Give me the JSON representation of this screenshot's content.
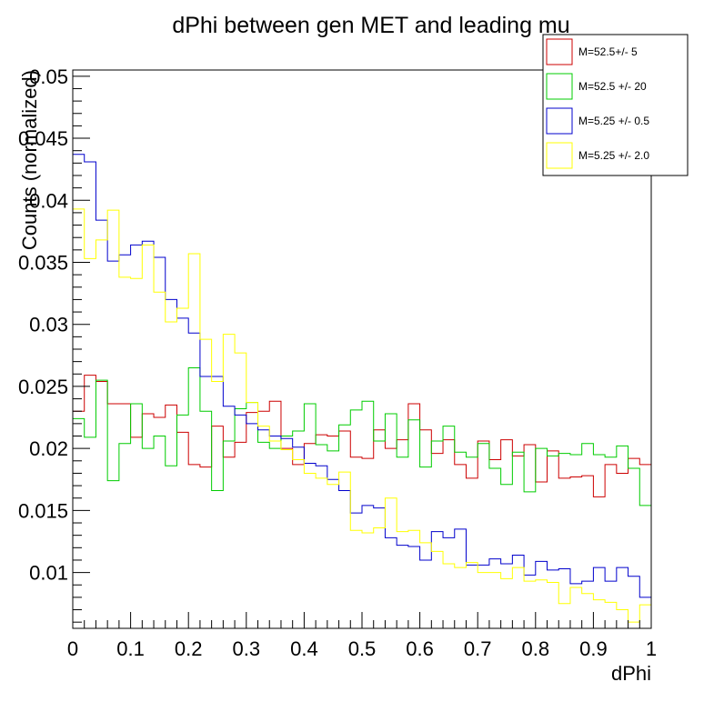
{
  "chart_data": {
    "type": "histogram",
    "title": "dPhi between gen MET and leading mu",
    "xlabel": "dPhi",
    "ylabel": "Counts (normalized)",
    "xlim": [
      0,
      1
    ],
    "ylim": [
      0.0055,
      0.0505
    ],
    "x_ticks": [
      "0",
      "0.1",
      "0.2",
      "0.3",
      "0.4",
      "0.5",
      "0.6",
      "0.7",
      "0.8",
      "0.9",
      "1"
    ],
    "y_ticks": [
      "0.01",
      "0.015",
      "0.02",
      "0.025",
      "0.03",
      "0.035",
      "0.04",
      "0.045",
      "0.05"
    ],
    "bins": 50,
    "bin_width": 0.02,
    "grid": false,
    "legend_position": "top-right",
    "series": [
      {
        "name": "M=52.5+/- 5",
        "color": "#cc0000",
        "values": [
          0.023,
          0.0259,
          0.0254,
          0.0236,
          0.0236,
          0.0209,
          0.0228,
          0.0225,
          0.0235,
          0.0213,
          0.0187,
          0.0185,
          0.0218,
          0.0193,
          0.0205,
          0.0229,
          0.023,
          0.0238,
          0.02,
          0.0187,
          0.0204,
          0.0211,
          0.021,
          0.0214,
          0.0193,
          0.0192,
          0.0215,
          0.02,
          0.0207,
          0.0236,
          0.0215,
          0.0196,
          0.0207,
          0.0187,
          0.0176,
          0.0206,
          0.0191,
          0.0207,
          0.0194,
          0.0203,
          0.0173,
          0.0198,
          0.0176,
          0.0177,
          0.0178,
          0.0161,
          0.0187,
          0.018,
          0.0192,
          0.0187
        ]
      },
      {
        "name": "M=52.5 +/- 20",
        "color": "#00cc00",
        "values": [
          0.0224,
          0.0209,
          0.0255,
          0.0174,
          0.0204,
          0.0236,
          0.02,
          0.021,
          0.0186,
          0.0227,
          0.0265,
          0.023,
          0.0166,
          0.0206,
          0.0232,
          0.0237,
          0.0205,
          0.02,
          0.021,
          0.0214,
          0.0236,
          0.0203,
          0.0198,
          0.0219,
          0.0231,
          0.0238,
          0.0206,
          0.0228,
          0.0193,
          0.0223,
          0.0185,
          0.0206,
          0.0218,
          0.0197,
          0.0193,
          0.0204,
          0.0184,
          0.0171,
          0.0197,
          0.0165,
          0.02,
          0.0194,
          0.0196,
          0.0195,
          0.0204,
          0.0195,
          0.0193,
          0.0202,
          0.0184,
          0.0154
        ]
      },
      {
        "name": "M=5.25 +/- 0.5",
        "color": "#0000cc",
        "values": [
          0.0437,
          0.0431,
          0.0384,
          0.0351,
          0.0356,
          0.0364,
          0.0367,
          0.0354,
          0.032,
          0.0305,
          0.0293,
          0.0258,
          0.0258,
          0.0234,
          0.0227,
          0.022,
          0.0215,
          0.021,
          0.0208,
          0.0201,
          0.0188,
          0.0186,
          0.0175,
          0.0166,
          0.0148,
          0.0154,
          0.0152,
          0.0128,
          0.0122,
          0.0121,
          0.011,
          0.0133,
          0.0128,
          0.0135,
          0.0106,
          0.0106,
          0.0111,
          0.0107,
          0.0114,
          0.0098,
          0.0109,
          0.0102,
          0.0103,
          0.0091,
          0.0093,
          0.0104,
          0.0093,
          0.0104,
          0.0097,
          0.008
        ]
      },
      {
        "name": "M=5.25 +/- 2.0",
        "color": "#ffff00",
        "values": [
          0.0393,
          0.0353,
          0.0368,
          0.0392,
          0.0338,
          0.0337,
          0.0364,
          0.0326,
          0.0302,
          0.0313,
          0.0357,
          0.0288,
          0.0254,
          0.0292,
          0.0277,
          0.0237,
          0.0218,
          0.0206,
          0.0199,
          0.0191,
          0.018,
          0.0176,
          0.0171,
          0.0181,
          0.0134,
          0.0132,
          0.0136,
          0.016,
          0.0133,
          0.0134,
          0.0124,
          0.0117,
          0.0107,
          0.0104,
          0.0108,
          0.01,
          0.01,
          0.0095,
          0.0104,
          0.0093,
          0.0094,
          0.0092,
          0.0075,
          0.0088,
          0.0083,
          0.0078,
          0.0076,
          0.007,
          0.006,
          0.0074
        ]
      }
    ]
  }
}
